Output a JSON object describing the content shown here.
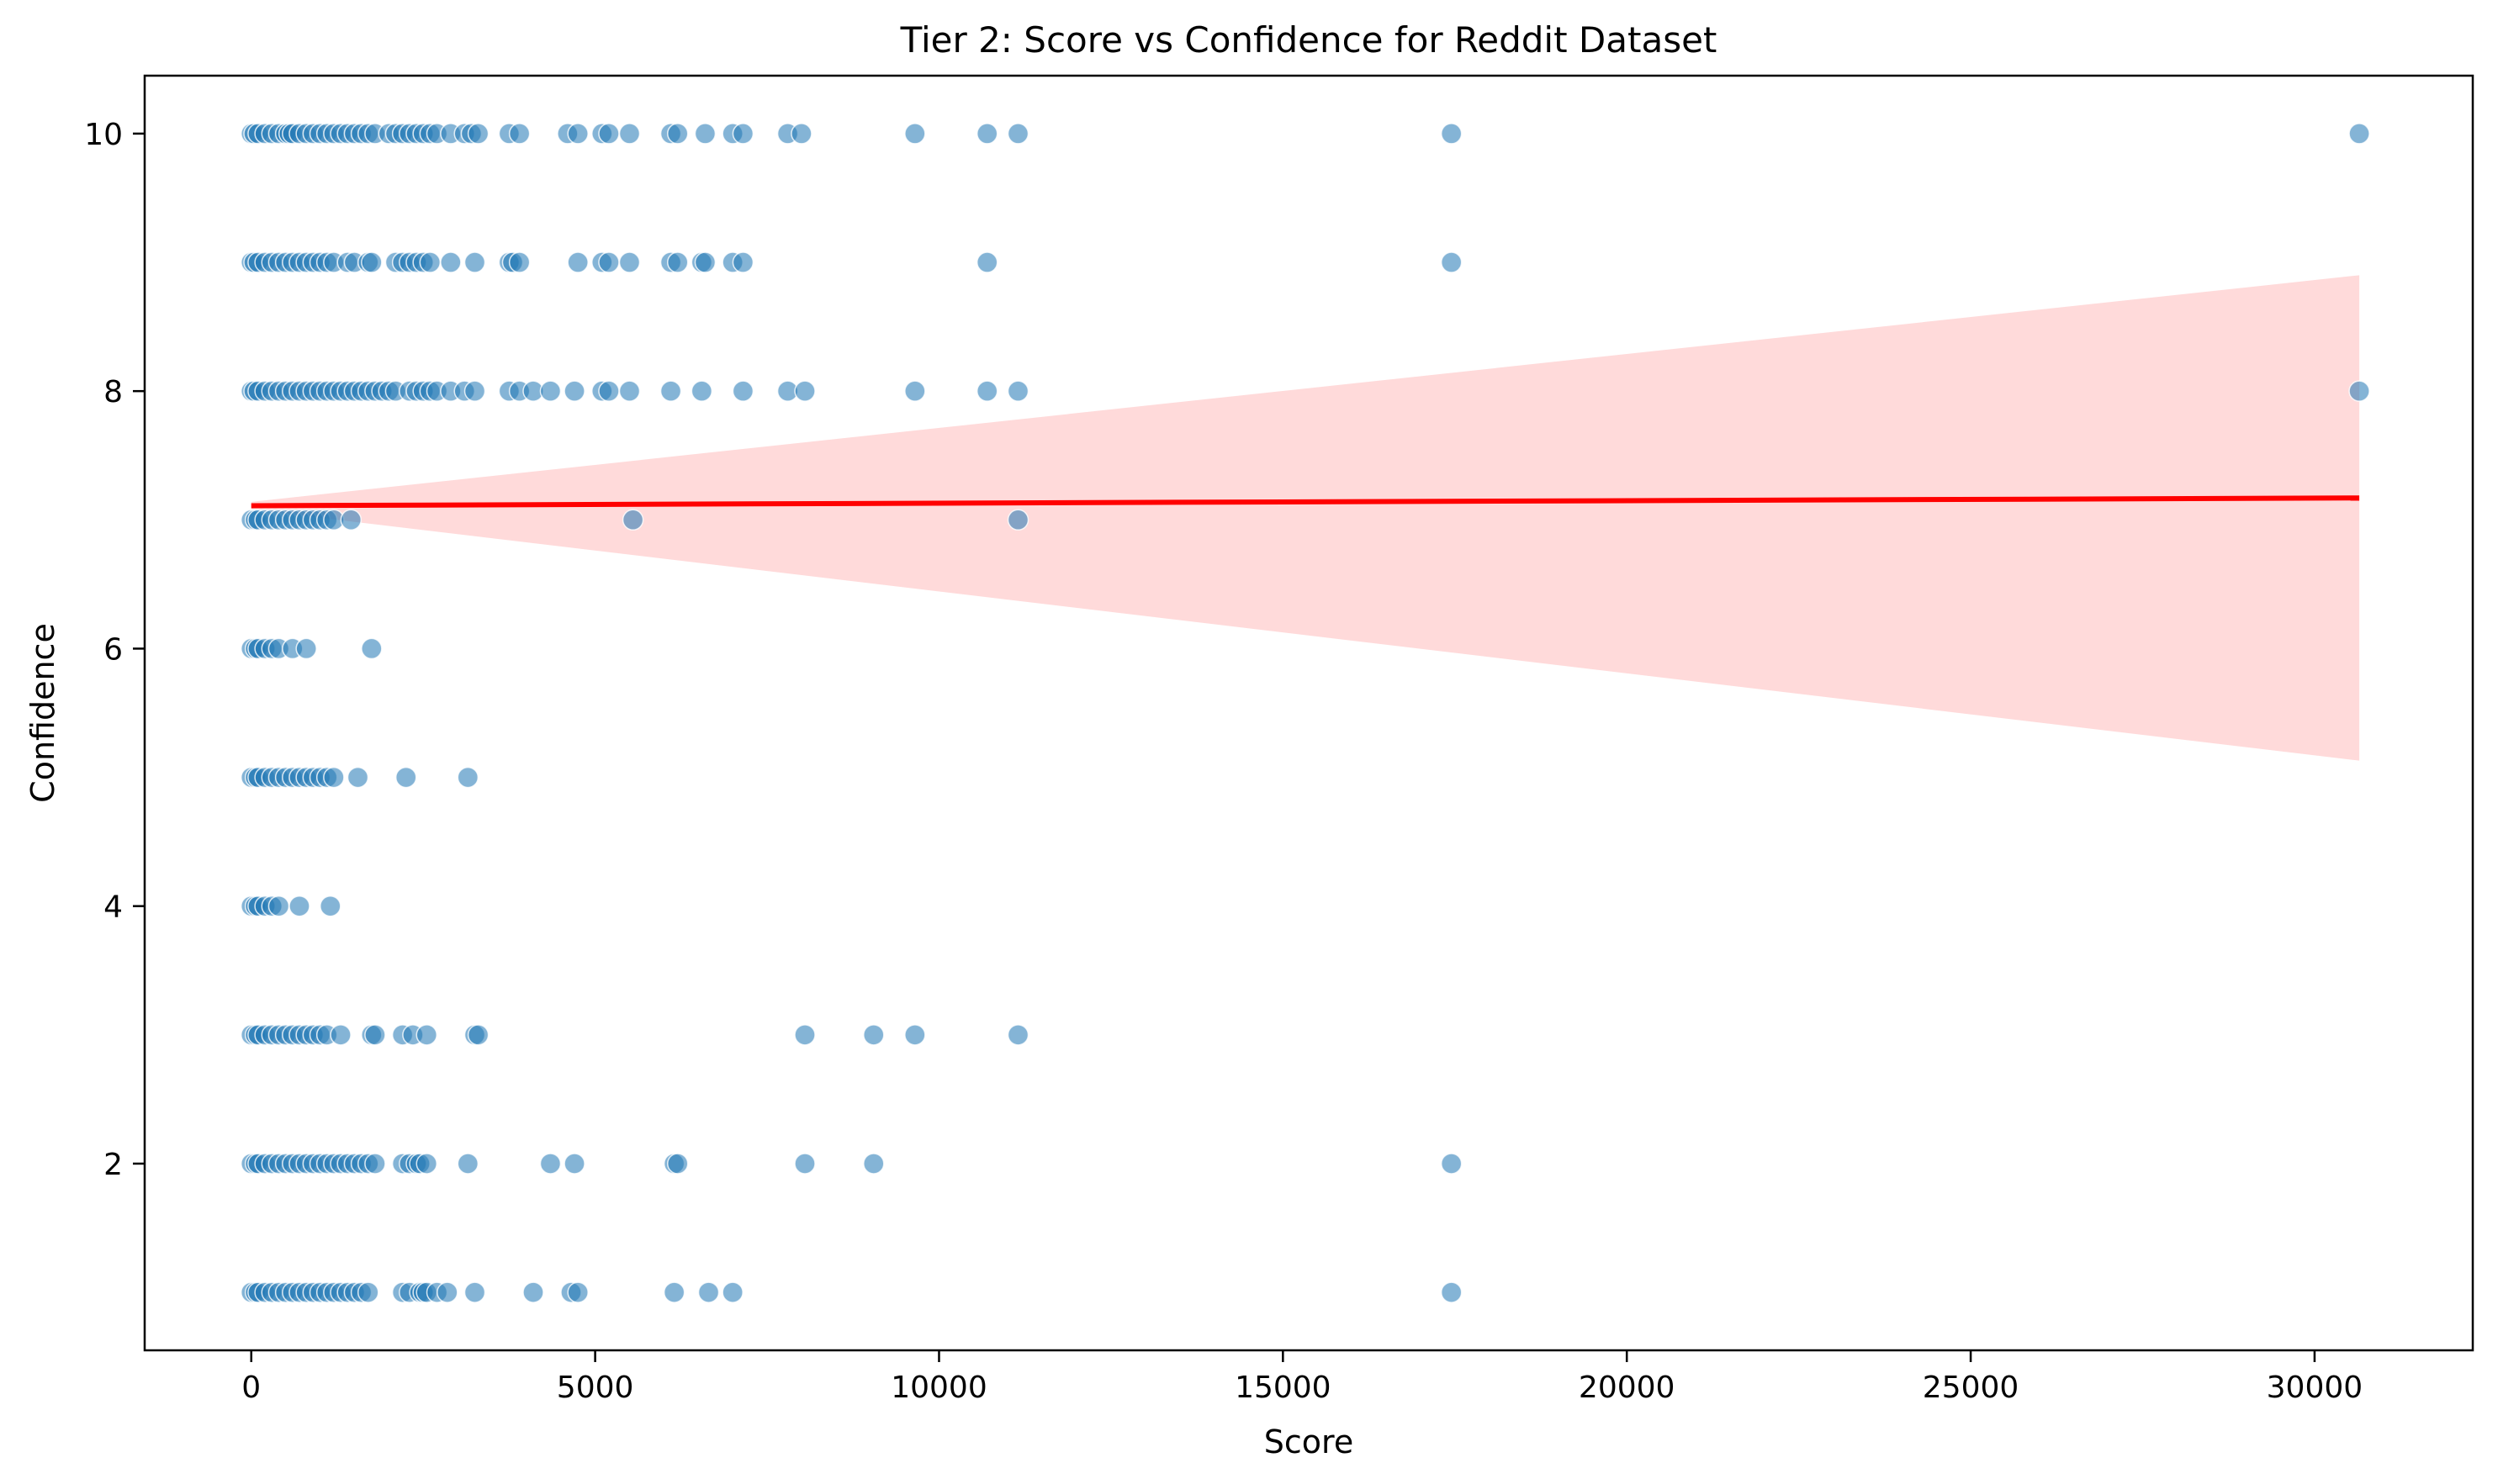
{
  "chart_data": {
    "type": "scatter",
    "title": "Tier 2: Score vs Confidence for Reddit Dataset",
    "xlabel": "Score",
    "ylabel": "Confidence",
    "xlim": [
      -1550,
      32300
    ],
    "ylim": [
      0.55,
      10.45
    ],
    "xticks": [
      0,
      5000,
      10000,
      15000,
      20000,
      25000,
      30000
    ],
    "yticks": [
      2,
      4,
      6,
      8,
      10
    ],
    "grid": false,
    "colors": {
      "points": "#1f77b4",
      "regression_line": "#ff0000",
      "confidence_band": "#ffd6d6"
    },
    "regression": {
      "x": [
        0,
        30650
      ],
      "y": [
        7.11,
        7.17
      ]
    },
    "confidence_band": {
      "x": [
        0,
        30650
      ],
      "lower": [
        7.08,
        5.13
      ],
      "upper": [
        7.14,
        8.9
      ]
    },
    "series": [
      {
        "y": 10,
        "x": [
          0,
          40,
          100,
          200,
          300,
          400,
          500,
          550,
          600,
          700,
          800,
          900,
          1000,
          1100,
          1200,
          1300,
          1400,
          1500,
          1600,
          1700,
          1800,
          2000,
          2100,
          2200,
          2300,
          2400,
          2500,
          2600,
          2700,
          2900,
          3100,
          3200,
          3300,
          3750,
          3900,
          4600,
          4750,
          5100,
          5200,
          5500,
          6100,
          6200,
          6600,
          7000,
          7150,
          7800,
          8000,
          9650,
          10700,
          11150,
          17450,
          30650
        ]
      },
      {
        "y": 9,
        "x": [
          0,
          40,
          100,
          200,
          300,
          400,
          500,
          600,
          700,
          800,
          900,
          1000,
          1100,
          1200,
          1400,
          1500,
          1700,
          1750,
          2100,
          2200,
          2300,
          2400,
          2500,
          2600,
          2900,
          3250,
          3750,
          3800,
          3900,
          4750,
          5100,
          5200,
          5500,
          6100,
          6200,
          6550,
          6600,
          7000,
          7150,
          10700,
          17450
        ]
      },
      {
        "y": 8,
        "x": [
          0,
          40,
          100,
          200,
          300,
          400,
          500,
          600,
          700,
          800,
          900,
          1000,
          1100,
          1200,
          1300,
          1400,
          1500,
          1600,
          1700,
          1800,
          1900,
          2000,
          2100,
          2300,
          2400,
          2500,
          2600,
          2700,
          2900,
          3100,
          3250,
          3750,
          3900,
          4100,
          4350,
          4700,
          5100,
          5200,
          5500,
          6100,
          6550,
          7150,
          7800,
          8050,
          9650,
          10700,
          11150,
          30650
        ]
      },
      {
        "y": 7,
        "x": [
          0,
          60,
          100,
          200,
          300,
          400,
          500,
          600,
          700,
          800,
          900,
          1000,
          1100,
          1200,
          1450,
          5550,
          11150
        ]
      },
      {
        "y": 6,
        "x": [
          0,
          60,
          100,
          200,
          300,
          400,
          600,
          800,
          1750
        ]
      },
      {
        "y": 5,
        "x": [
          0,
          60,
          100,
          200,
          300,
          400,
          500,
          600,
          700,
          800,
          900,
          1000,
          1100,
          1200,
          1550,
          2250,
          3150
        ]
      },
      {
        "y": 4,
        "x": [
          0,
          60,
          100,
          200,
          300,
          400,
          700,
          1150
        ]
      },
      {
        "y": 3,
        "x": [
          0,
          60,
          100,
          200,
          300,
          400,
          500,
          600,
          700,
          800,
          900,
          1000,
          1100,
          1300,
          1750,
          1800,
          2200,
          2350,
          2550,
          3250,
          3300,
          8050,
          9050,
          9650,
          11150
        ]
      },
      {
        "y": 2,
        "x": [
          0,
          60,
          100,
          200,
          300,
          400,
          500,
          600,
          700,
          800,
          900,
          1000,
          1100,
          1200,
          1300,
          1400,
          1500,
          1600,
          1700,
          1800,
          2200,
          2300,
          2400,
          2450,
          2550,
          3150,
          4350,
          4700,
          6150,
          6200,
          8050,
          9050,
          17450
        ]
      },
      {
        "y": 1,
        "x": [
          0,
          60,
          100,
          200,
          300,
          400,
          500,
          600,
          700,
          800,
          900,
          1000,
          1100,
          1200,
          1300,
          1400,
          1500,
          1600,
          1700,
          2200,
          2300,
          2450,
          2500,
          2550,
          2700,
          2850,
          3250,
          4100,
          4650,
          4750,
          6150,
          6650,
          7000,
          17450
        ]
      }
    ]
  }
}
